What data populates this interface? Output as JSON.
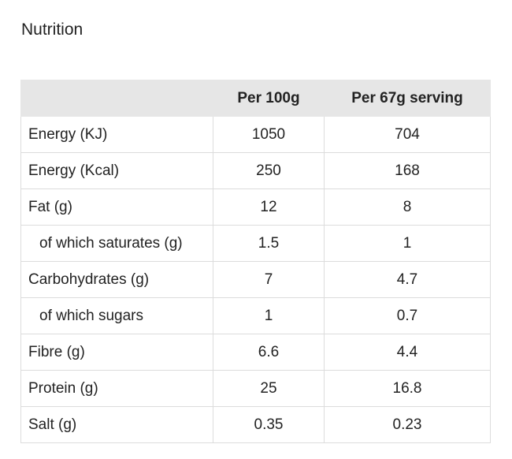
{
  "title": "Nutrition",
  "table": {
    "header": [
      "Per 100g",
      "Per 67g serving"
    ],
    "rows": [
      [
        "Energy (KJ)",
        1050,
        704
      ],
      [
        "Energy (Kcal)",
        250,
        168
      ],
      [
        "Fat (g)",
        12,
        8
      ],
      [
        "of which saturates (g)",
        1.5,
        1
      ],
      [
        "Carbohydrates (g)",
        7,
        4.7
      ],
      [
        "of which sugars",
        1,
        0.7
      ],
      [
        "Fibre (g)",
        6.6,
        4.4
      ],
      [
        "Protein (g)",
        25,
        16.8
      ],
      [
        "Salt (g)",
        0.35,
        0.23
      ]
    ]
  }
}
